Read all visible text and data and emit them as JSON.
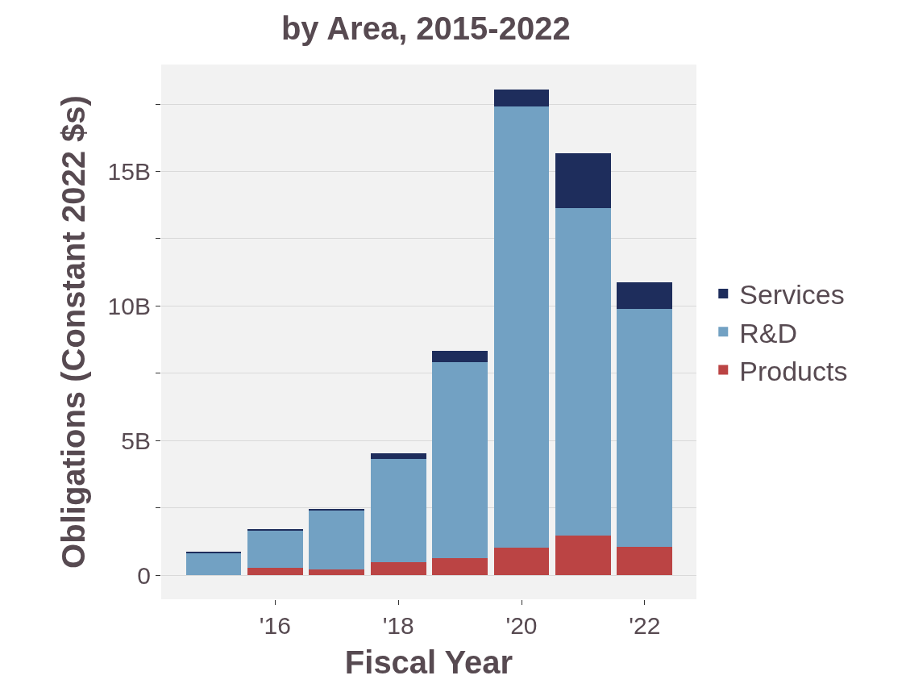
{
  "chart_data": {
    "type": "bar",
    "title": "by Area, 2015-2022",
    "xlabel": "Fiscal Year",
    "ylabel": "Obligations (Constant 2022 $s)",
    "x": [
      2015,
      2016,
      2017,
      2018,
      2019,
      2020,
      2021,
      2022
    ],
    "stacked": true,
    "series": [
      {
        "name": "Products",
        "color": "#bb4444",
        "values": [
          0,
          0.28,
          0.22,
          0.5,
          0.64,
          1.03,
          1.48,
          1.06
        ]
      },
      {
        "name": "R&D",
        "color": "#72a1c3",
        "values": [
          0.84,
          1.39,
          2.2,
          3.82,
          7.27,
          16.38,
          12.17,
          8.83
        ]
      },
      {
        "name": "Services",
        "color": "#1e2d5c",
        "values": [
          0.02,
          0.03,
          0.04,
          0.22,
          0.42,
          0.64,
          2.03,
          1.0
        ]
      }
    ],
    "xlim": [
      2014.15,
      2022.84
    ],
    "xticks": [
      {
        "value": 2016,
        "label": "'16"
      },
      {
        "value": 2018,
        "label": "'18"
      },
      {
        "value": 2020,
        "label": "'20"
      },
      {
        "value": 2022,
        "label": "'22"
      }
    ],
    "ylim": [
      -0.89,
      18.97
    ],
    "yticks": [
      0,
      {
        "value": 2.5,
        "label": null
      },
      {
        "value": 5,
        "label": "5B"
      },
      {
        "value": 7.5,
        "label": null
      },
      {
        "value": 10,
        "label": "10B"
      },
      {
        "value": 12.5,
        "label": null
      },
      {
        "value": 15,
        "label": "15B"
      },
      {
        "value": 17.5,
        "label": null
      }
    ],
    "grid": "y",
    "legend": "right"
  }
}
